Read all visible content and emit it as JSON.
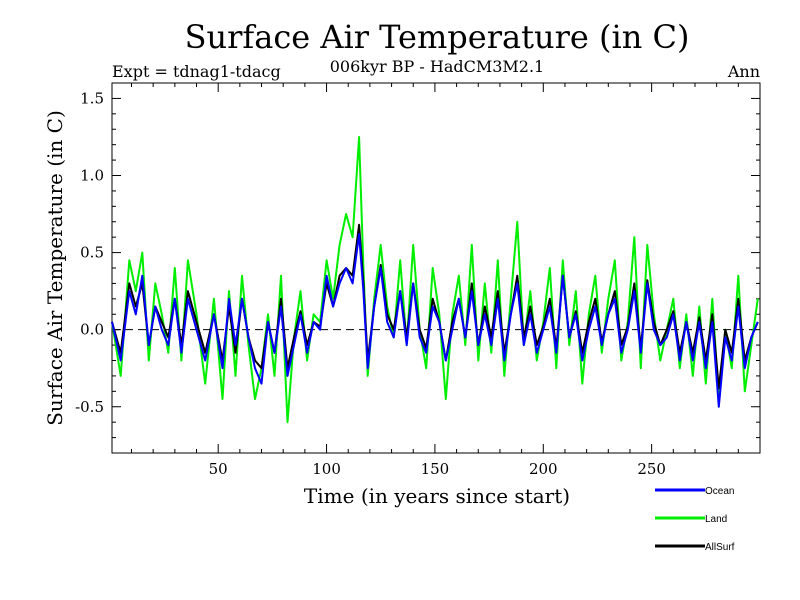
{
  "chart_data": {
    "type": "line",
    "title": "Surface Air Temperature (in C)",
    "subtitle": "006kyr BP - HadCM3M2.1",
    "left_label": "Expt = tdnag1-tdacg",
    "right_label": "Ann",
    "xlabel": "Time (in years since start)",
    "ylabel": "Surface Air Temperature (in C)",
    "xlim": [
      1,
      300
    ],
    "ylim": [
      -0.8,
      1.6
    ],
    "xticks": [
      50,
      100,
      150,
      200,
      250
    ],
    "yticks": [
      -0.5,
      0.0,
      0.5,
      1.0,
      1.5
    ],
    "ytick_labels": [
      "-0.5",
      "0.0",
      "0.5",
      "1.0",
      "1.5"
    ],
    "zero_line": 0.0,
    "legend": [
      {
        "name": "Ocean",
        "color": "#0000ff"
      },
      {
        "name": "Land",
        "color": "#00ee00"
      },
      {
        "name": "AllSurf",
        "color": "#000000"
      }
    ],
    "series": [
      {
        "name": "Land",
        "color": "#00ee00",
        "x": [
          1,
          5,
          9,
          12,
          15,
          18,
          21,
          24,
          27,
          30,
          33,
          36,
          40,
          44,
          48,
          52,
          55,
          58,
          61,
          64,
          67,
          70,
          73,
          76,
          79,
          82,
          85,
          88,
          91,
          94,
          97,
          100,
          103,
          106,
          109,
          112,
          115,
          117,
          119,
          122,
          125,
          128,
          131,
          134,
          137,
          140,
          143,
          146,
          149,
          152,
          155,
          158,
          161,
          164,
          167,
          170,
          173,
          176,
          179,
          182,
          185,
          188,
          191,
          194,
          197,
          200,
          203,
          206,
          209,
          212,
          215,
          218,
          221,
          224,
          227,
          230,
          233,
          236,
          239,
          242,
          245,
          248,
          251,
          254,
          257,
          260,
          263,
          266,
          269,
          272,
          275,
          278,
          281,
          284,
          287,
          290,
          293,
          296,
          299
        ],
        "values": [
          0.05,
          -0.3,
          0.45,
          0.25,
          0.5,
          -0.2,
          0.3,
          0.1,
          -0.15,
          0.4,
          -0.2,
          0.45,
          0.1,
          -0.35,
          0.2,
          -0.45,
          0.25,
          -0.3,
          0.35,
          -0.1,
          -0.45,
          -0.25,
          0.1,
          -0.3,
          0.35,
          -0.6,
          -0.05,
          0.25,
          -0.2,
          0.1,
          0.05,
          0.45,
          0.2,
          0.55,
          0.75,
          0.6,
          1.25,
          0.4,
          -0.3,
          0.2,
          0.55,
          0.15,
          -0.05,
          0.45,
          -0.1,
          0.55,
          0.0,
          -0.25,
          0.4,
          0.1,
          -0.45,
          0.1,
          0.35,
          -0.1,
          0.55,
          -0.2,
          0.3,
          -0.15,
          0.45,
          -0.3,
          0.2,
          0.7,
          -0.1,
          0.25,
          -0.2,
          0.05,
          0.4,
          -0.25,
          0.45,
          -0.1,
          0.25,
          -0.35,
          0.1,
          0.35,
          -0.15,
          0.2,
          0.45,
          -0.2,
          0.05,
          0.6,
          -0.25,
          0.55,
          0.1,
          -0.2,
          0.0,
          0.2,
          -0.25,
          0.1,
          -0.3,
          0.15,
          -0.35,
          0.2,
          -0.45,
          0.0,
          -0.25,
          0.35,
          -0.4,
          -0.1,
          0.2
        ]
      },
      {
        "name": "AllSurf",
        "color": "#000000",
        "x": [
          1,
          5,
          9,
          12,
          15,
          18,
          21,
          24,
          27,
          30,
          33,
          36,
          40,
          44,
          48,
          52,
          55,
          58,
          61,
          64,
          67,
          70,
          73,
          76,
          79,
          82,
          85,
          88,
          91,
          94,
          97,
          100,
          103,
          106,
          109,
          112,
          115,
          117,
          119,
          122,
          125,
          128,
          131,
          134,
          137,
          140,
          143,
          146,
          149,
          152,
          155,
          158,
          161,
          164,
          167,
          170,
          173,
          176,
          179,
          182,
          185,
          188,
          191,
          194,
          197,
          200,
          203,
          206,
          209,
          212,
          215,
          218,
          221,
          224,
          227,
          230,
          233,
          236,
          239,
          242,
          245,
          248,
          251,
          254,
          257,
          260,
          263,
          266,
          269,
          272,
          275,
          278,
          281,
          284,
          287,
          290,
          293,
          296,
          299
        ],
        "values": [
          0.05,
          -0.15,
          0.3,
          0.15,
          0.3,
          -0.1,
          0.15,
          0.05,
          -0.05,
          0.2,
          -0.1,
          0.25,
          0.05,
          -0.15,
          0.1,
          -0.2,
          0.15,
          -0.15,
          0.2,
          -0.05,
          -0.2,
          -0.25,
          0.05,
          -0.15,
          0.2,
          -0.25,
          -0.05,
          0.12,
          -0.1,
          0.05,
          0.02,
          0.3,
          0.15,
          0.35,
          0.4,
          0.35,
          0.68,
          0.3,
          -0.2,
          0.15,
          0.42,
          0.1,
          0.0,
          0.25,
          -0.05,
          0.3,
          0.0,
          -0.12,
          0.2,
          0.05,
          -0.2,
          0.05,
          0.2,
          -0.05,
          0.3,
          -0.1,
          0.15,
          -0.05,
          0.25,
          -0.15,
          0.1,
          0.35,
          -0.05,
          0.15,
          -0.1,
          0.02,
          0.2,
          -0.12,
          0.35,
          -0.05,
          0.12,
          -0.15,
          0.05,
          0.2,
          -0.08,
          0.1,
          0.25,
          -0.1,
          0.02,
          0.3,
          -0.12,
          0.32,
          0.05,
          -0.1,
          0.0,
          0.12,
          -0.15,
          0.05,
          -0.15,
          0.08,
          -0.2,
          0.1,
          -0.38,
          0.0,
          -0.15,
          0.2,
          -0.2,
          -0.05,
          0.05
        ]
      },
      {
        "name": "Ocean",
        "color": "#0000ff",
        "x": [
          1,
          5,
          9,
          12,
          15,
          18,
          21,
          24,
          27,
          30,
          33,
          36,
          40,
          44,
          48,
          52,
          55,
          58,
          61,
          64,
          67,
          70,
          73,
          76,
          79,
          82,
          85,
          88,
          91,
          94,
          97,
          100,
          103,
          106,
          109,
          112,
          115,
          117,
          119,
          122,
          125,
          128,
          131,
          134,
          137,
          140,
          143,
          146,
          149,
          152,
          155,
          158,
          161,
          164,
          167,
          170,
          173,
          176,
          179,
          182,
          185,
          188,
          191,
          194,
          197,
          200,
          203,
          206,
          209,
          212,
          215,
          218,
          221,
          224,
          227,
          230,
          233,
          236,
          239,
          242,
          245,
          248,
          251,
          254,
          257,
          260,
          263,
          266,
          269,
          272,
          275,
          278,
          281,
          284,
          287,
          290,
          293,
          296,
          299
        ],
        "values": [
          0.05,
          -0.2,
          0.25,
          0.1,
          0.35,
          -0.1,
          0.15,
          0.0,
          -0.1,
          0.2,
          -0.15,
          0.2,
          0.0,
          -0.2,
          0.1,
          -0.25,
          0.2,
          -0.1,
          0.2,
          -0.05,
          -0.25,
          -0.35,
          0.05,
          -0.15,
          0.15,
          -0.3,
          -0.1,
          0.1,
          -0.15,
          0.05,
          0.0,
          0.35,
          0.15,
          0.3,
          0.4,
          0.3,
          0.62,
          0.25,
          -0.25,
          0.15,
          0.4,
          0.05,
          -0.05,
          0.25,
          -0.1,
          0.3,
          -0.05,
          -0.15,
          0.15,
          0.05,
          -0.2,
          0.0,
          0.2,
          -0.05,
          0.25,
          -0.1,
          0.1,
          -0.1,
          0.2,
          -0.2,
          0.1,
          0.3,
          -0.1,
          0.1,
          -0.15,
          0.0,
          0.15,
          -0.15,
          0.35,
          -0.05,
          0.1,
          -0.2,
          0.0,
          0.15,
          -0.1,
          0.1,
          0.2,
          -0.15,
          0.0,
          0.25,
          -0.15,
          0.3,
          0.0,
          -0.1,
          -0.05,
          0.1,
          -0.2,
          0.05,
          -0.2,
          0.05,
          -0.25,
          0.05,
          -0.5,
          -0.05,
          -0.2,
          0.15,
          -0.25,
          -0.05,
          0.05
        ]
      }
    ]
  }
}
